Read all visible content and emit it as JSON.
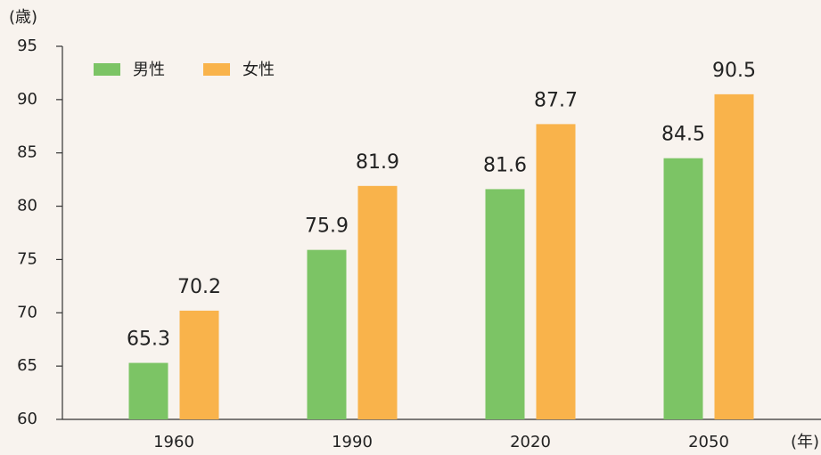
{
  "chart_data": {
    "type": "bar",
    "y_label": "(歳)",
    "x_label": "(年)",
    "categories": [
      "1960",
      "1990",
      "2020",
      "2050"
    ],
    "series": [
      {
        "name": "男性",
        "color": "#7cc465",
        "values": [
          65.3,
          75.9,
          81.6,
          84.5
        ]
      },
      {
        "name": "女性",
        "color": "#f9b34b",
        "values": [
          70.2,
          81.9,
          87.7,
          90.5
        ]
      }
    ],
    "ylim": [
      60,
      95
    ],
    "yticks": [
      60,
      65,
      70,
      75,
      80,
      85,
      90,
      95
    ],
    "legend": "top-left"
  }
}
